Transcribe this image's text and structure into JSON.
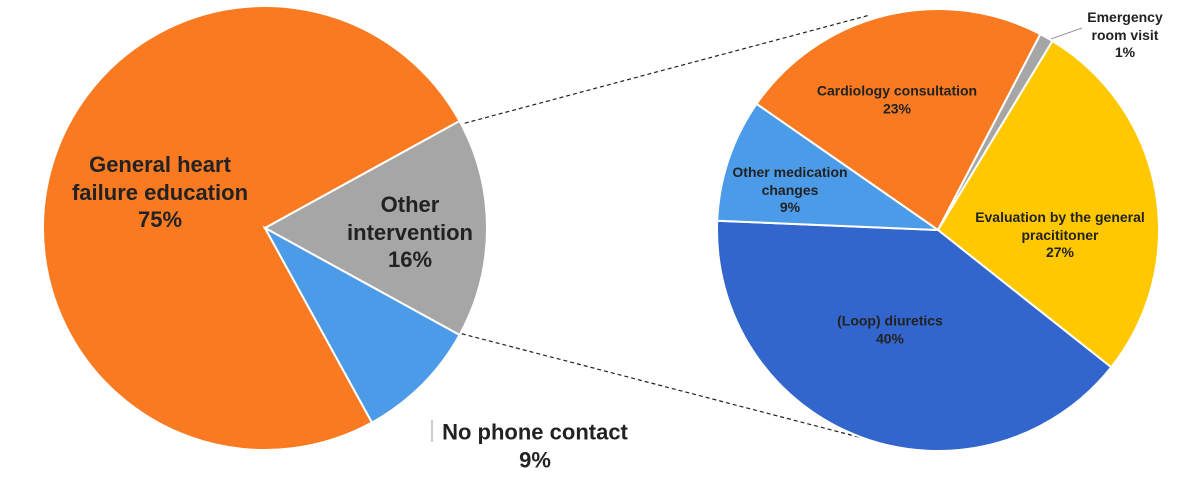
{
  "chart_data": [
    {
      "type": "pie",
      "categories": [
        "General heart failure education",
        "Other intervention",
        "No phone contact"
      ],
      "values": [
        75,
        16,
        9
      ],
      "value_labels": [
        "75%",
        "16%",
        "9%"
      ],
      "colors": [
        "#f97a21",
        "#a6a6a6",
        "#4c9be8"
      ]
    },
    {
      "type": "pie",
      "categories": [
        "Cardiology consultation",
        "Emergency room visit",
        "Evaluation by the general pracititoner",
        "(Loop) diuretics",
        "Other medication changes"
      ],
      "values": [
        23,
        1,
        27,
        40,
        9
      ],
      "value_labels": [
        "23%",
        "1%",
        "27%",
        "40%",
        "9%"
      ],
      "colors": [
        "#f97a21",
        "#a6a6a6",
        "#ffc800",
        "#3366cc",
        "#4c9be8"
      ]
    }
  ]
}
